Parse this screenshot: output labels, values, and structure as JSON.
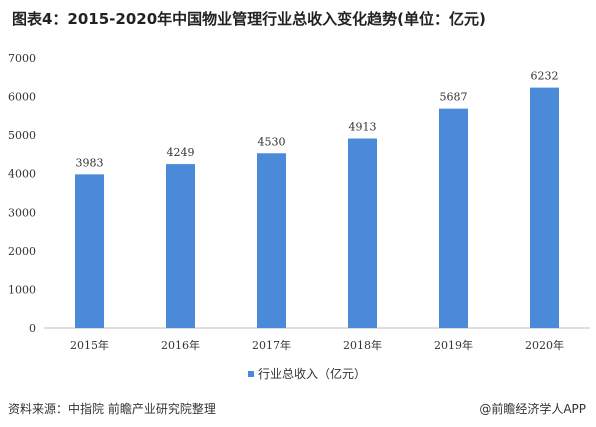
{
  "title": "图表4：2015-2020年中国物业管理行业总收入变化趋势(单位：亿元)",
  "source": "资料来源：中指院 前瞻产业研究院整理",
  "brand": "@前瞻经济学人APP",
  "colors": {
    "bar": "#4a8ad8",
    "axis": "#bfbfbf"
  },
  "chart_data": {
    "type": "bar",
    "categories": [
      "2015年",
      "2016年",
      "2017年",
      "2018年",
      "2019年",
      "2020年"
    ],
    "series": [
      {
        "name": "行业总收入（亿元）",
        "values": [
          3983,
          4249,
          4530,
          4913,
          5687,
          6232
        ]
      }
    ],
    "ylim": [
      0,
      7000
    ],
    "yticks": [
      0,
      1000,
      2000,
      3000,
      4000,
      5000,
      6000,
      7000
    ],
    "legend": "bottom",
    "grid": false
  }
}
